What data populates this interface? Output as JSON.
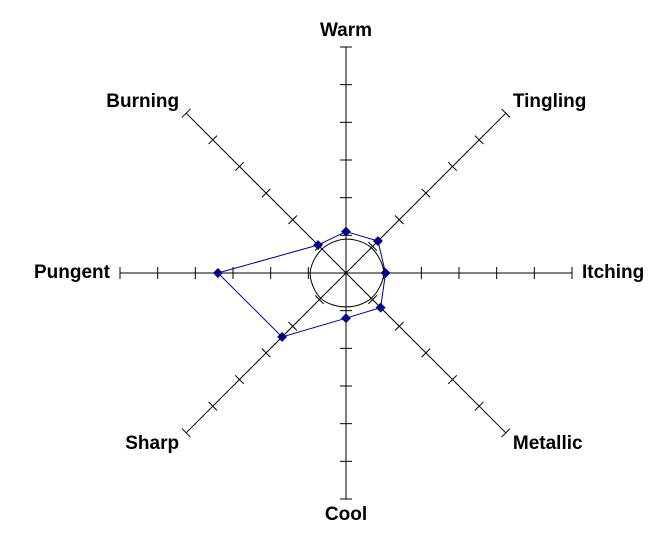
{
  "chart_data": {
    "type": "radar",
    "categories": [
      "Warm",
      "Tingling",
      "Itching",
      "Metallic",
      "Cool",
      "Sharp",
      "Pungent",
      "Burning"
    ],
    "rlim": [
      0,
      6
    ],
    "rticks": [
      1,
      2,
      3,
      4,
      5,
      6
    ],
    "series": [
      {
        "color": "#000080",
        "markers": true,
        "values": [
          1.1,
          1.2,
          1.05,
          1.3,
          1.2,
          2.4,
          3.4,
          1.05
        ]
      },
      {
        "color": "#000000",
        "markers": false,
        "values": [
          0.9,
          0.95,
          1.0,
          0.95,
          0.9,
          0.95,
          0.95,
          0.9
        ]
      }
    ]
  }
}
